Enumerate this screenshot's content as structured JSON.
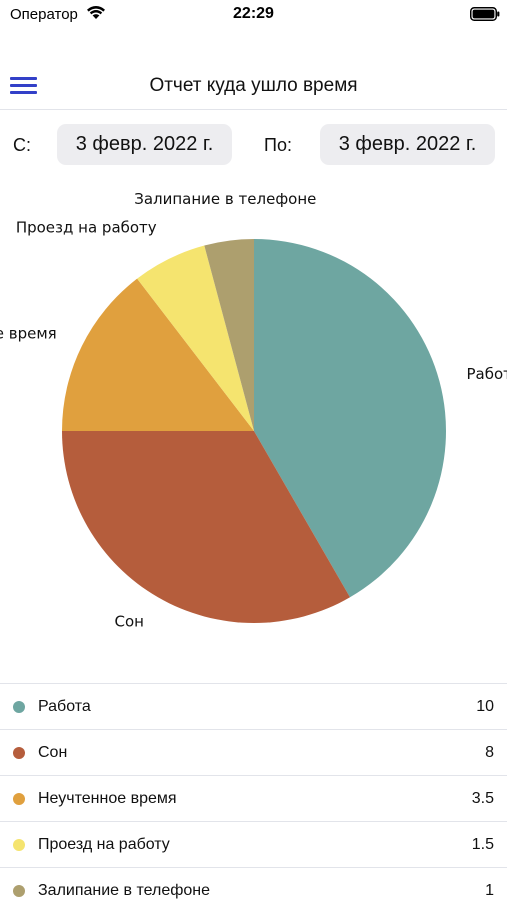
{
  "status_bar": {
    "carrier": "Оператор",
    "time": "22:29"
  },
  "nav": {
    "title": "Отчет куда ушло время"
  },
  "date_range": {
    "from_label": "С:",
    "from_value": "3 февр. 2022 г.",
    "to_label": "По:",
    "to_value": "3 февр. 2022 г."
  },
  "chart_data": {
    "type": "pie",
    "categories": [
      "Работа",
      "Сон",
      "Неучтенное время",
      "Проезд на работу",
      "Залипание в телефоне"
    ],
    "values": [
      10,
      8,
      3.5,
      1.5,
      1
    ],
    "colors": [
      "#6ea6a1",
      "#b55d3c",
      "#e0a03e",
      "#f5e46f",
      "#ad9f6e"
    ],
    "slice_labels": [
      "Работа",
      "Сон",
      "Неучтенное время",
      "Проезд на работу",
      "Залипание в телефоне"
    ]
  },
  "legend": [
    {
      "name": "Работа",
      "value": "10",
      "color": "#6ea6a1"
    },
    {
      "name": "Сон",
      "value": "8",
      "color": "#b55d3c"
    },
    {
      "name": "Неучтенное время",
      "value": "3.5",
      "color": "#e0a03e"
    },
    {
      "name": "Проезд на работу",
      "value": "1.5",
      "color": "#f5e46f"
    },
    {
      "name": "Залипание в телефоне",
      "value": "1",
      "color": "#ad9f6e"
    }
  ],
  "icons": {
    "menu": "hamburger-icon",
    "wifi": "wifi-icon",
    "battery": "battery-icon"
  }
}
